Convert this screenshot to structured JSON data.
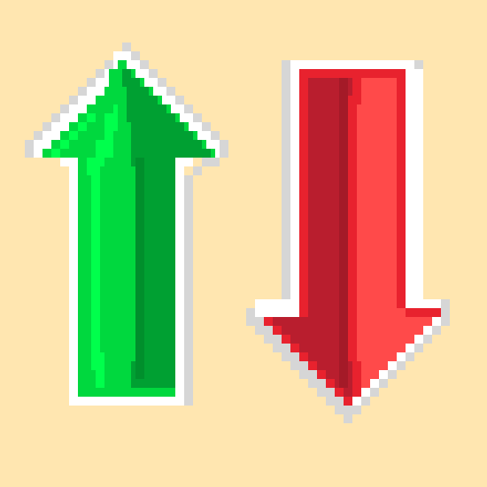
{
  "background_color": "#FFE6B0",
  "icons": [
    {
      "name": "arrow-up-icon",
      "direction": "up",
      "colors": {
        "outline_light": "#FFFFFF",
        "outline_shadow": "#D6D6D6",
        "highlight": "#00FF4C",
        "mid": "#00D83E",
        "shade": "#00A032",
        "deep_shade": "#008F2C"
      }
    },
    {
      "name": "arrow-down-icon",
      "direction": "down",
      "colors": {
        "outline_light": "#FFFFFF",
        "outline_shadow": "#D6D6D6",
        "highlight": "#FF4A4A",
        "mid": "#E8222E",
        "shade": "#B91E2E",
        "deep_shade": "#A41A28"
      }
    }
  ]
}
